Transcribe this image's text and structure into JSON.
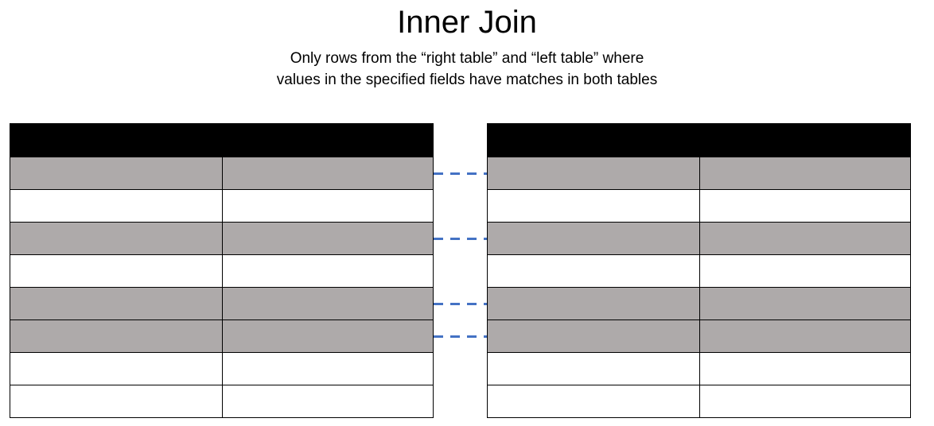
{
  "title": "Inner Join",
  "subtitle_lines": [
    "Only rows from the “right table” and “left table” where",
    "values in the specified fields have matches in both tables"
  ],
  "colors": {
    "header": "#000000",
    "matched_row": "#aeaaaa",
    "unmatched_row": "#ffffff",
    "connector": "#4472c4"
  },
  "left_table": {
    "rows": [
      {
        "matched": true
      },
      {
        "matched": false
      },
      {
        "matched": true
      },
      {
        "matched": false
      },
      {
        "matched": true
      },
      {
        "matched": true
      },
      {
        "matched": false
      },
      {
        "matched": false
      }
    ]
  },
  "right_table": {
    "rows": [
      {
        "matched": true
      },
      {
        "matched": false
      },
      {
        "matched": true
      },
      {
        "matched": false
      },
      {
        "matched": true
      },
      {
        "matched": true
      },
      {
        "matched": false
      },
      {
        "matched": false
      }
    ]
  },
  "join_links": [
    {
      "left_row": 1,
      "right_row": 1
    },
    {
      "left_row": 3,
      "right_row": 3
    },
    {
      "left_row": 5,
      "right_row": 5
    },
    {
      "left_row": 6,
      "right_row": 6
    }
  ]
}
